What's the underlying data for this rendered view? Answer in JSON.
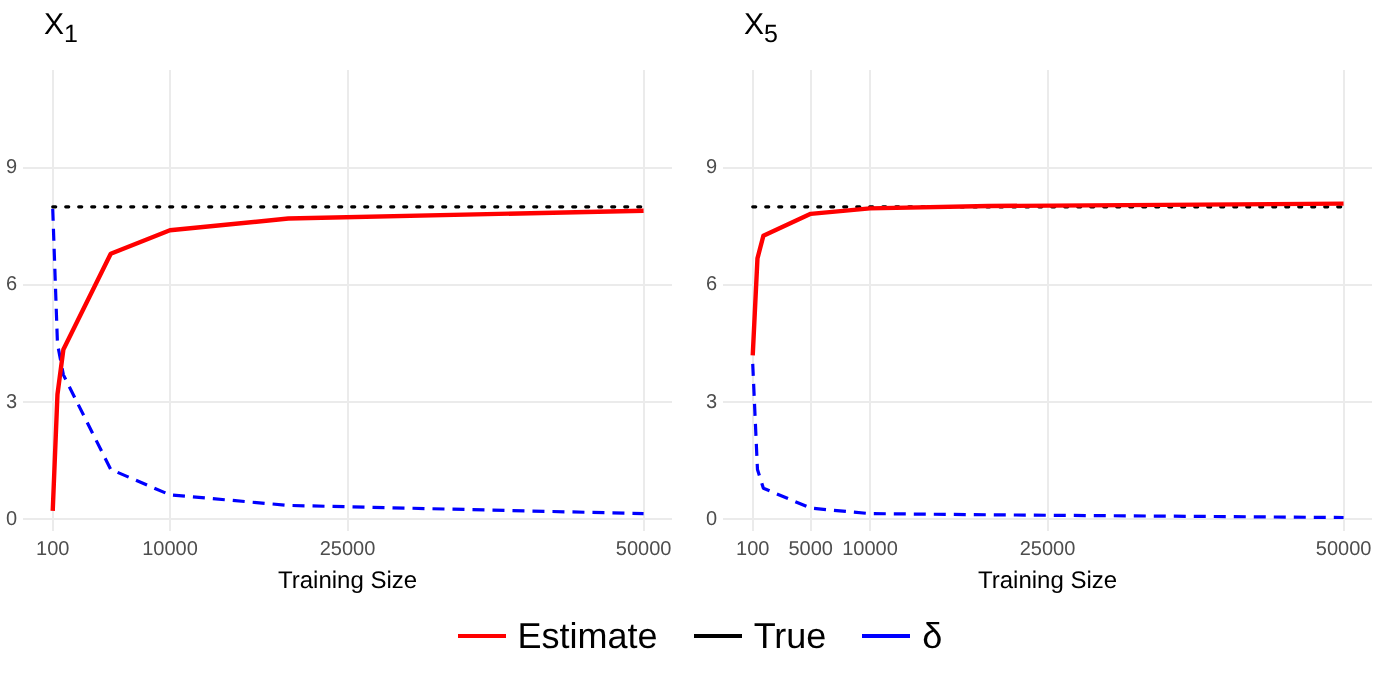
{
  "chart_data": [
    {
      "type": "line",
      "title": "X$_{1}$",
      "xlabel": "Training Size",
      "x": [
        100,
        500,
        1000,
        5000,
        10000,
        20000,
        50000
      ],
      "xlim": [
        -2400,
        52400
      ],
      "xticks": [
        100,
        10000,
        25000,
        50000
      ],
      "ylim": [
        -0.3,
        11.5
      ],
      "yticks": [
        0,
        3,
        6,
        9
      ],
      "grid": true,
      "legend": "bottom",
      "marker": "none",
      "series": [
        {
          "name": "Estimate",
          "color": "#ff0000",
          "line_style": "solid",
          "values": [
            0.22,
            3.2,
            4.35,
            6.8,
            7.4,
            7.7,
            7.9
          ]
        },
        {
          "name": "True",
          "color": "#000000",
          "line_style": "dotted",
          "values": [
            8,
            8,
            8,
            8,
            8,
            8,
            8
          ]
        },
        {
          "name": "δ",
          "color": "#0000ff",
          "line_style": "dashed",
          "values": [
            7.95,
            4.5,
            3.7,
            1.28,
            0.63,
            0.36,
            0.15
          ]
        }
      ]
    },
    {
      "type": "line",
      "title": "X$_{5}$",
      "xlabel": "Training Size",
      "x": [
        100,
        500,
        1000,
        5000,
        10000,
        20000,
        50000
      ],
      "xlim": [
        -2400,
        52400
      ],
      "xticks": [
        100,
        5000,
        10000,
        25000,
        50000
      ],
      "ylim": [
        -0.3,
        11.5
      ],
      "yticks": [
        0,
        3,
        6,
        9
      ],
      "grid": true,
      "marker": "none",
      "series": [
        {
          "color": "#ff0000",
          "line_style": "solid",
          "values": [
            4.2,
            6.68,
            7.26,
            7.82,
            7.96,
            8.02,
            8.08
          ]
        },
        {
          "color": "#000000",
          "line_style": "dotted",
          "values": [
            8,
            8,
            8,
            8,
            8,
            8,
            8
          ]
        },
        {
          "color": "#0000ff",
          "line_style": "dashed",
          "values": [
            3.98,
            1.28,
            0.8,
            0.29,
            0.15,
            0.12,
            0.05
          ]
        }
      ]
    }
  ]
}
